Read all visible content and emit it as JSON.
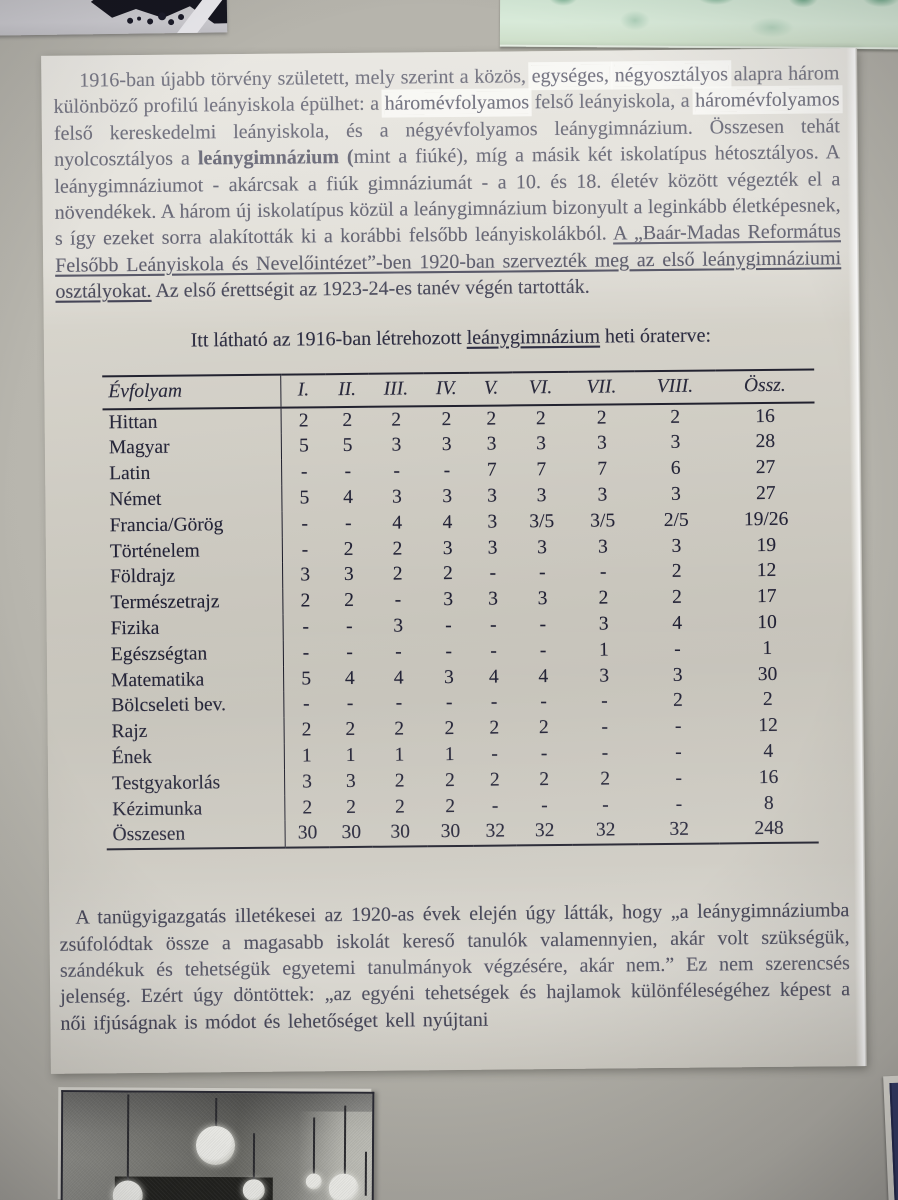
{
  "doc": {
    "paragraph1_runs": [
      {
        "t": "1916-ban újabb törvény született, mely szerint a közös, ",
        "s": "n"
      },
      {
        "t": "egységes,",
        "s": "h"
      },
      {
        "t": " ",
        "s": "n"
      },
      {
        "t": "négyosztályos",
        "s": "h"
      },
      {
        "t": " alapra három különböző profilú leányiskola épülhet: a ",
        "s": "n"
      },
      {
        "t": "háromévfolyamos",
        "s": "h"
      },
      {
        "t": " felső leányiskola, a ",
        "s": "n"
      },
      {
        "t": "háromévfolyamos",
        "s": "h"
      },
      {
        "t": " felső kereskedelmi leányiskola, és a négyévfolyamos leánygimnázium. Összesen tehát nyolcosztályos a ",
        "s": "n"
      },
      {
        "t": "leánygimnázium (",
        "s": "b"
      },
      {
        "t": "mint a fiúké), míg a másik két iskolatípus hétosztályos. A leánygimnáziumot - akárcsak a fiúk gimnáziumát - a 10. és 18. életév között végezték el a növendékek. A három új iskolatípus közül a leánygimnázium bizonyult a leginkább életképesnek, s így ezeket sorra alakították ki a korábbi felsőbb leányiskolákból. ",
        "s": "n"
      },
      {
        "t": "A „Baár-Madas Református Felsőbb Leányiskola és Nevelőintézet”-ben 1920-ban szervezték meg az első leánygimnáziumi osztályokat.",
        "s": "u"
      },
      {
        "t": " Az első érettségit az 1923-24-es tanév végén tartották.",
        "s": "n"
      }
    ],
    "caption_runs": [
      {
        "t": "Itt látható az 1916-ban létrehozott ",
        "s": "n"
      },
      {
        "t": "leánygimnázium",
        "s": "u"
      },
      {
        "t": " heti óraterve:",
        "s": "n"
      }
    ],
    "table": {
      "headers": [
        "Évfolyam",
        "I.",
        "II.",
        "III.",
        "IV.",
        "V.",
        "VI.",
        "VII.",
        "VIII.",
        "Össz."
      ],
      "rows": [
        [
          "Hittan",
          "2",
          "2",
          "2",
          "2",
          "2",
          "2",
          "2",
          "2",
          "16"
        ],
        [
          "Magyar",
          "5",
          "5",
          "3",
          "3",
          "3",
          "3",
          "3",
          "3",
          "28"
        ],
        [
          "Latin",
          "-",
          "-",
          "-",
          "-",
          "7",
          "7",
          "7",
          "6",
          "27"
        ],
        [
          "Német",
          "5",
          "4",
          "3",
          "3",
          "3",
          "3",
          "3",
          "3",
          "27"
        ],
        [
          "Francia/Görög",
          "-",
          "-",
          "4",
          "4",
          "3",
          "3/5",
          "3/5",
          "2/5",
          "19/26"
        ],
        [
          "Történelem",
          "-",
          "2",
          "2",
          "3",
          "3",
          "3",
          "3",
          "3",
          "19"
        ],
        [
          "Földrajz",
          "3",
          "3",
          "2",
          "2",
          "-",
          "-",
          "-",
          "2",
          "12"
        ],
        [
          "Természetrajz",
          "2",
          "2",
          "-",
          "3",
          "3",
          "3",
          "2",
          "2",
          "17"
        ],
        [
          "Fizika",
          "-",
          "-",
          "3",
          "-",
          "-",
          "-",
          "3",
          "4",
          "10"
        ],
        [
          "Egészségtan",
          "-",
          "-",
          "-",
          "-",
          "-",
          "-",
          "1",
          "-",
          "1"
        ],
        [
          "Matematika",
          "5",
          "4",
          "4",
          "3",
          "4",
          "4",
          "3",
          "3",
          "30"
        ],
        [
          "Bölcseleti bev.",
          "-",
          "-",
          "-",
          "-",
          "-",
          "-",
          "-",
          "2",
          "2"
        ],
        [
          "Rajz",
          "2",
          "2",
          "2",
          "2",
          "2",
          "2",
          "-",
          "-",
          "12"
        ],
        [
          "Ének",
          "1",
          "1",
          "1",
          "1",
          "-",
          "-",
          "-",
          "-",
          "4"
        ],
        [
          "Testgyakorlás",
          "3",
          "3",
          "2",
          "2",
          "2",
          "2",
          "2",
          "-",
          "16"
        ],
        [
          "Kézimunka",
          "2",
          "2",
          "2",
          "2",
          "-",
          "-",
          "-",
          "-",
          "8"
        ],
        [
          "Összesen",
          "30",
          "30",
          "30",
          "30",
          "32",
          "32",
          "32",
          "32",
          "248"
        ]
      ]
    },
    "paragraph2_runs": [
      {
        "t": "A tanügyigazgatás illetékesei az 1920-as évek elején úgy látták, hogy „a leánygimnáziumba zsúfolódtak össze a magasabb iskolát kereső tanulók valamennyien, akár volt szükségük, szándékuk és tehetségük egyetemi tanulmányok végzésére, akár nem.” Ez nem szerencsés jelenség. Ezért úgy döntöttek: „az egyéni tehetségek és hajlamok különféleségéhez képest a női ifjúságnak is módot és lehetőséget kell nyújtani",
        "s": "n"
      }
    ]
  },
  "photos": {
    "top_left": "bw-photo-fragment",
    "top_right": "green-photo-fragment",
    "bottom": "bw-interior-photo-with-pendant-lamps",
    "bottom_right": "photo-corner-fragment"
  },
  "colors": {
    "album_background": "#b3b1a9",
    "paper": "#cfccc3",
    "ink": "#232338",
    "green_photo": "#d3e6d4",
    "table_rule": "#181826"
  }
}
